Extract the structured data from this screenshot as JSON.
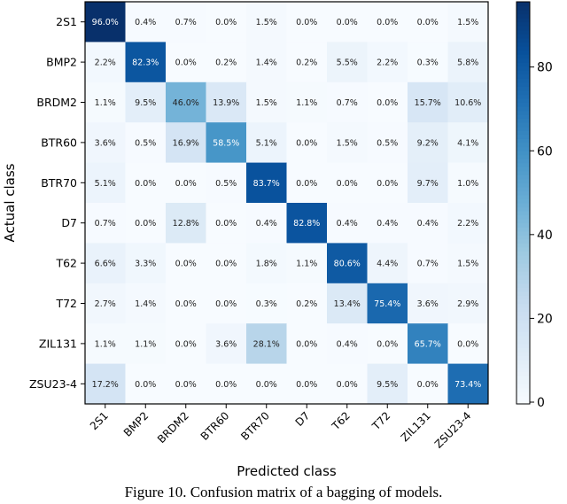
{
  "chart_data": {
    "type": "heatmap",
    "title": "",
    "xlabel": "Predicted class",
    "ylabel": "Actual class",
    "x_categories": [
      "2S1",
      "BMP2",
      "BRDM2",
      "BTR60",
      "BTR70",
      "D7",
      "T62",
      "T72",
      "ZIL131",
      "ZSU23-4"
    ],
    "y_categories": [
      "2S1",
      "BMP2",
      "BRDM2",
      "BTR60",
      "BTR70",
      "D7",
      "T62",
      "T72",
      "ZIL131",
      "ZSU23-4"
    ],
    "values": [
      [
        96.0,
        0.4,
        0.7,
        0.0,
        1.5,
        0.0,
        0.0,
        0.0,
        0.0,
        1.5
      ],
      [
        2.2,
        82.3,
        0.0,
        0.2,
        1.4,
        0.2,
        5.5,
        2.2,
        0.3,
        5.8
      ],
      [
        1.1,
        9.5,
        46.0,
        13.9,
        1.5,
        1.1,
        0.7,
        0.0,
        15.7,
        10.6
      ],
      [
        3.6,
        0.5,
        16.9,
        58.5,
        5.1,
        0.0,
        1.5,
        0.5,
        9.2,
        4.1
      ],
      [
        5.1,
        0.0,
        0.0,
        0.5,
        83.7,
        0.0,
        0.0,
        0.0,
        9.7,
        1.0
      ],
      [
        0.7,
        0.0,
        12.8,
        0.0,
        0.4,
        82.8,
        0.4,
        0.4,
        0.4,
        2.2
      ],
      [
        6.6,
        3.3,
        0.0,
        0.0,
        1.8,
        1.1,
        80.6,
        4.4,
        0.7,
        1.5
      ],
      [
        2.7,
        1.4,
        0.0,
        0.0,
        0.3,
        0.2,
        13.4,
        75.4,
        3.6,
        2.9
      ],
      [
        1.1,
        1.1,
        0.0,
        3.6,
        28.1,
        0.0,
        0.4,
        0.0,
        65.7,
        0.0
      ],
      [
        17.2,
        0.0,
        0.0,
        0.0,
        0.0,
        0.0,
        0.0,
        9.5,
        0.0,
        73.4
      ]
    ],
    "value_format": "percent",
    "colormap": "Blues",
    "color_range": [
      0,
      96
    ],
    "colorbar_ticks": [
      0,
      20,
      40,
      60,
      80
    ],
    "grid": false
  },
  "caption": "Figure 10. Confusion matrix of a bagging of models."
}
